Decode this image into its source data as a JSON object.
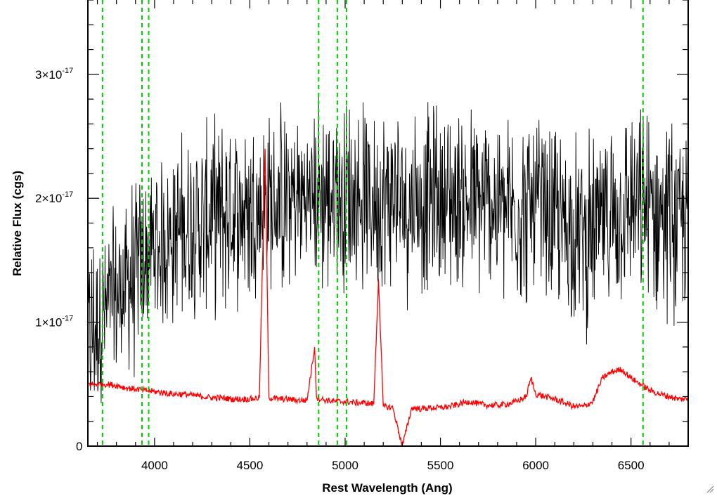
{
  "chart_data": {
    "type": "line",
    "xlabel": "Rest Wavelength (Ang)",
    "ylabel": "Relative Flux (cgs)",
    "xlim": [
      3650,
      6800
    ],
    "ylim": [
      0,
      3.6e-17
    ],
    "x_ticks": [
      {
        "value": 4000,
        "label": "4000"
      },
      {
        "value": 4500,
        "label": "4500"
      },
      {
        "value": 5000,
        "label": "5000"
      },
      {
        "value": 5500,
        "label": "5500"
      },
      {
        "value": 6000,
        "label": "6000"
      },
      {
        "value": 6500,
        "label": "6500"
      }
    ],
    "y_ticks": [
      {
        "value": 0,
        "label": "0",
        "exponent": ""
      },
      {
        "value": 1e-17,
        "label": "1×10",
        "exponent": "-17"
      },
      {
        "value": 2e-17,
        "label": "2×10",
        "exponent": "-17"
      },
      {
        "value": 3e-17,
        "label": "3×10",
        "exponent": "-17"
      }
    ],
    "grid": false,
    "legend": "none",
    "series": [
      {
        "color": "#000000",
        "style": "noisy spectrum",
        "x": [
          3650,
          3700,
          3750,
          3800,
          3850,
          3900,
          3950,
          4000,
          4050,
          4100,
          4150,
          4200,
          4250,
          4300,
          4350,
          4400,
          4450,
          4500,
          4550,
          4600,
          4650,
          4700,
          4750,
          4800,
          4850,
          4900,
          4950,
          5000,
          5050,
          5100,
          5150,
          5200,
          5250,
          5300,
          5350,
          5400,
          5450,
          5500,
          5550,
          5600,
          5650,
          5700,
          5750,
          5800,
          5850,
          5900,
          5950,
          6000,
          6050,
          6100,
          6150,
          6200,
          6250,
          6300,
          6350,
          6400,
          6450,
          6500,
          6550,
          6600,
          6650,
          6700,
          6750,
          6800
        ],
        "values": [
          9e-18,
          1e-17,
          1.1e-17,
          1.2e-17,
          1.3e-17,
          1.4e-17,
          1.5e-17,
          1.6e-17,
          1.65e-17,
          1.7e-17,
          1.75e-17,
          1.8e-17,
          1.8e-17,
          1.85e-17,
          1.85e-17,
          1.9e-17,
          1.9e-17,
          1.9e-17,
          1.95e-17,
          1.95e-17,
          1.95e-17,
          2e-17,
          2e-17,
          2e-17,
          2.05e-17,
          2e-17,
          2.05e-17,
          2.05e-17,
          2e-17,
          2e-17,
          2e-17,
          2e-17,
          2e-17,
          1.95e-17,
          2e-17,
          2e-17,
          2e-17,
          2e-17,
          2e-17,
          2e-17,
          1.95e-17,
          1.95e-17,
          1.95e-17,
          1.95e-17,
          1.9e-17,
          1.9e-17,
          1.9e-17,
          1.9e-17,
          1.85e-17,
          1.8e-17,
          1.8e-17,
          1.75e-17,
          1.7e-17,
          1.7e-17,
          1.8e-17,
          1.9e-17,
          1.9e-17,
          1.95e-17,
          1.9e-17,
          1.9e-17,
          1.9e-17,
          1.85e-17,
          1.8e-17,
          1.8e-17
        ]
      },
      {
        "color": "#ff0000",
        "style": "error spectrum",
        "x": [
          3650,
          3700,
          3750,
          3800,
          3850,
          3900,
          3950,
          4000,
          4050,
          4100,
          4150,
          4200,
          4250,
          4300,
          4350,
          4400,
          4450,
          4500,
          4550,
          4580,
          4600,
          4650,
          4700,
          4750,
          4800,
          4840,
          4850,
          4900,
          4950,
          5000,
          5050,
          5100,
          5150,
          5175,
          5200,
          5250,
          5300,
          5350,
          5400,
          5450,
          5500,
          5550,
          5600,
          5650,
          5700,
          5750,
          5800,
          5850,
          5900,
          5950,
          5975,
          6000,
          6050,
          6100,
          6150,
          6200,
          6250,
          6300,
          6350,
          6400,
          6450,
          6500,
          6550,
          6600,
          6650,
          6700,
          6750,
          6800
        ],
        "values": [
          5e-18,
          5e-18,
          5e-18,
          4.9e-18,
          4.7e-18,
          4.6e-18,
          4.5e-18,
          4.4e-18,
          4.3e-18,
          4.2e-18,
          4.2e-18,
          4.1e-18,
          4e-18,
          3.9e-18,
          3.9e-18,
          3.8e-18,
          3.8e-18,
          3.8e-18,
          3.9e-18,
          2.4e-17,
          3.9e-18,
          3.8e-18,
          3.8e-18,
          3.7e-18,
          3.7e-18,
          8e-18,
          3.9e-18,
          3.7e-18,
          3.6e-18,
          3.6e-18,
          3.5e-18,
          3.5e-18,
          3.4e-18,
          1.35e-17,
          3.2e-18,
          3.1e-18,
          0.0,
          3.1e-18,
          3e-18,
          3.1e-18,
          3.1e-18,
          3.2e-18,
          3.4e-18,
          3.6e-18,
          3.4e-18,
          3.3e-18,
          3.3e-18,
          3.4e-18,
          3.6e-18,
          4e-18,
          5.5e-18,
          4.2e-18,
          4e-18,
          3.8e-18,
          3.5e-18,
          3.2e-18,
          3.2e-18,
          3.6e-18,
          5.5e-18,
          6e-18,
          6.2e-18,
          5.5e-18,
          5e-18,
          4.5e-18,
          4.2e-18,
          4e-18,
          3.8e-18,
          3.8e-18
        ]
      }
    ],
    "reference_lines": [
      {
        "x": 3727,
        "color": "#00cc00",
        "style": "dashed"
      },
      {
        "x": 3934,
        "color": "#00cc00",
        "style": "dashed"
      },
      {
        "x": 3969,
        "color": "#00cc00",
        "style": "dashed"
      },
      {
        "x": 4861,
        "color": "#00cc00",
        "style": "dashed"
      },
      {
        "x": 4959,
        "color": "#00cc00",
        "style": "dashed"
      },
      {
        "x": 5007,
        "color": "#00cc00",
        "style": "dashed"
      },
      {
        "x": 6563,
        "color": "#00cc00",
        "style": "dashed"
      }
    ]
  }
}
